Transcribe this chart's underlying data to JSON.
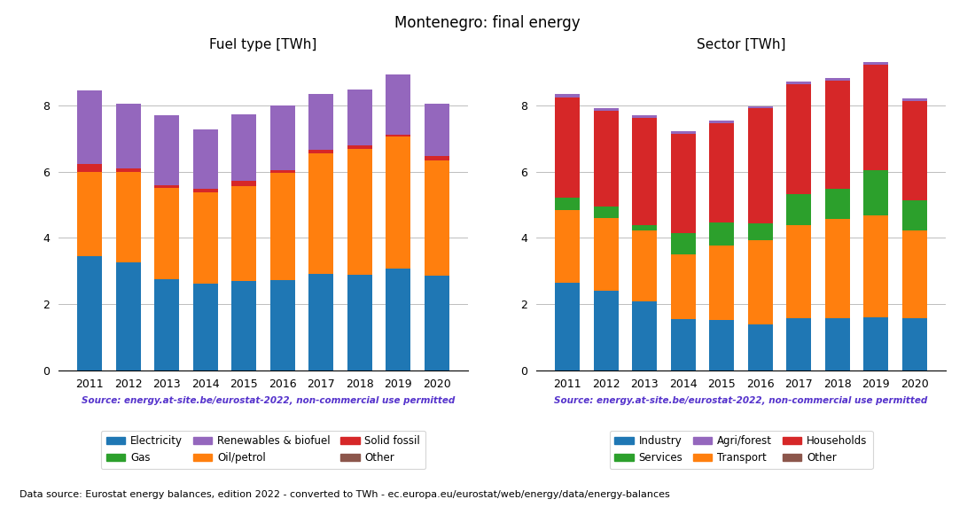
{
  "years": [
    2011,
    2012,
    2013,
    2014,
    2015,
    2016,
    2017,
    2018,
    2019,
    2020
  ],
  "fuel": {
    "electricity": [
      3.45,
      3.25,
      2.75,
      2.62,
      2.7,
      2.72,
      2.9,
      2.88,
      3.08,
      2.85
    ],
    "oil_petrol": [
      2.55,
      2.75,
      2.75,
      2.75,
      2.85,
      3.25,
      3.65,
      3.8,
      3.98,
      3.5
    ],
    "gas": [
      0.0,
      0.0,
      0.0,
      0.0,
      0.0,
      0.0,
      0.0,
      0.0,
      0.0,
      0.0
    ],
    "solid_fossil": [
      0.22,
      0.1,
      0.1,
      0.1,
      0.18,
      0.07,
      0.12,
      0.12,
      0.05,
      0.12
    ],
    "renewables_biofuel": [
      2.22,
      1.95,
      2.1,
      1.8,
      2.0,
      1.97,
      1.68,
      1.68,
      1.82,
      1.58
    ],
    "other": [
      0.0,
      0.0,
      0.0,
      0.0,
      0.0,
      0.0,
      0.0,
      0.0,
      0.0,
      0.0
    ]
  },
  "sector": {
    "industry": [
      2.65,
      2.4,
      2.08,
      1.55,
      1.52,
      1.38,
      1.58,
      1.58,
      1.6,
      1.58
    ],
    "transport": [
      2.2,
      2.2,
      2.15,
      1.95,
      2.25,
      2.55,
      2.8,
      2.98,
      3.08,
      2.63
    ],
    "services": [
      0.35,
      0.35,
      0.15,
      0.65,
      0.68,
      0.5,
      0.95,
      0.93,
      1.35,
      0.93
    ],
    "households": [
      3.05,
      2.88,
      3.25,
      3.0,
      3.0,
      3.5,
      3.3,
      3.25,
      3.2,
      3.0
    ],
    "agri_forest": [
      0.1,
      0.08,
      0.08,
      0.08,
      0.08,
      0.05,
      0.08,
      0.08,
      0.08,
      0.08
    ],
    "other": [
      0.0,
      0.0,
      0.0,
      0.0,
      0.0,
      0.0,
      0.0,
      0.0,
      0.0,
      0.0
    ]
  },
  "fuel_colors": {
    "electricity": "#1f77b4",
    "oil_petrol": "#ff7f0e",
    "gas": "#2ca02c",
    "solid_fossil": "#d62728",
    "renewables_biofuel": "#9467bd",
    "other": "#8c564b"
  },
  "sector_colors": {
    "industry": "#1f77b4",
    "transport": "#ff7f0e",
    "services": "#2ca02c",
    "households": "#d62728",
    "agri_forest": "#9467bd",
    "other": "#8c564b"
  },
  "title": "Montenegro: final energy",
  "fuel_title": "Fuel type [TWh]",
  "sector_title": "Sector [TWh]",
  "source_text": "Source: energy.at-site.be/eurostat-2022, non-commercial use permitted",
  "footer_text": "Data source: Eurostat energy balances, edition 2022 - converted to TWh - ec.europa.eu/eurostat/web/energy/data/energy-balances",
  "ylim": [
    0,
    9.5
  ],
  "yticks": [
    0,
    2,
    4,
    6,
    8
  ]
}
